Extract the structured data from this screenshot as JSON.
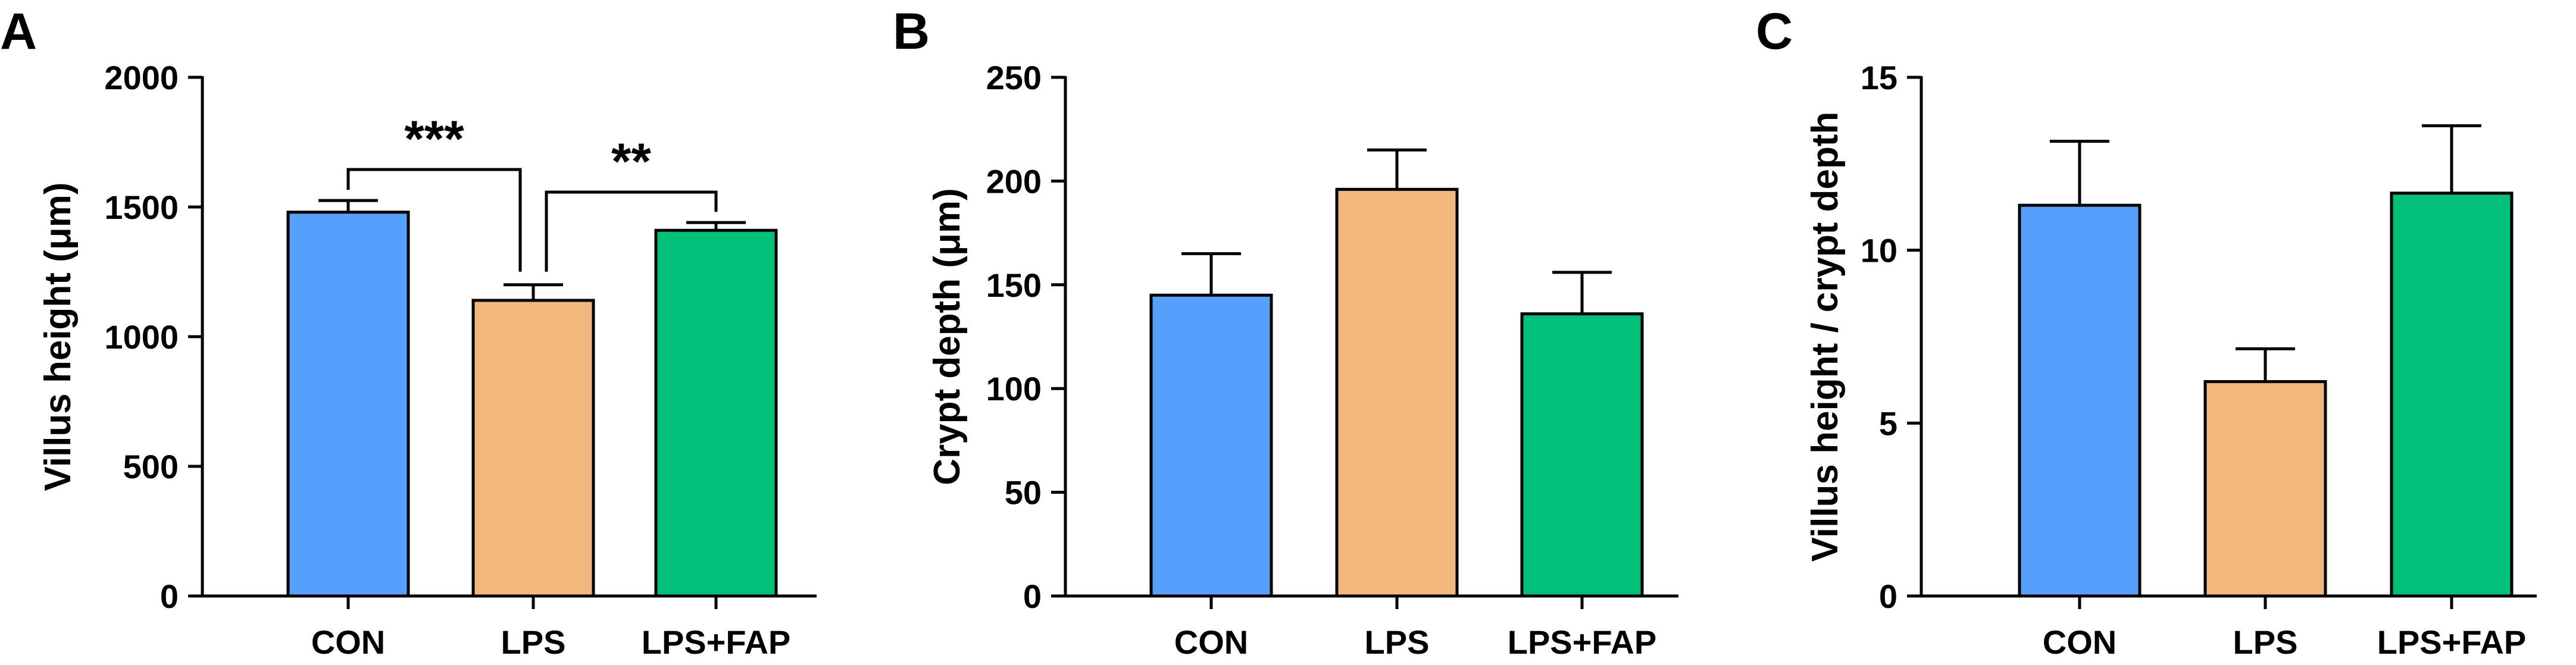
{
  "chart_data": [
    {
      "panel": "A",
      "type": "bar",
      "categories": [
        "CON",
        "LPS",
        "LPS+FAP"
      ],
      "values": [
        1480,
        1140,
        1410
      ],
      "errors": [
        45,
        60,
        30
      ],
      "colors": [
        "#55a0fb",
        "#f2b77d",
        "#00bf78"
      ],
      "ylabel": "Villus height (μm)",
      "xlabel": "",
      "ylim": [
        0,
        2000
      ],
      "yticks": [
        "0",
        "500",
        "1000",
        "1500",
        "2000"
      ],
      "yticks_values": [
        0,
        500,
        1000,
        1500,
        2000
      ],
      "grid": false,
      "significance": [
        {
          "from": 0,
          "to": 1,
          "label": "***"
        },
        {
          "from": 1,
          "to": 2,
          "label": "**"
        }
      ]
    },
    {
      "panel": "B",
      "type": "bar",
      "categories": [
        "CON",
        "LPS",
        "LPS+FAP"
      ],
      "values": [
        145,
        196,
        136
      ],
      "errors": [
        20,
        19,
        20
      ],
      "colors": [
        "#55a0fb",
        "#f2b77d",
        "#00bf78"
      ],
      "ylabel": "Crypt depth (μm)",
      "xlabel": "",
      "ylim": [
        0,
        250
      ],
      "yticks": [
        "0",
        "50",
        "100",
        "150",
        "200",
        "250"
      ],
      "yticks_values": [
        0,
        50,
        100,
        150,
        200,
        250
      ],
      "grid": false,
      "significance": []
    },
    {
      "panel": "C",
      "type": "bar",
      "categories": [
        "CON",
        "LPS",
        "LPS+FAP"
      ],
      "values": [
        11.3,
        6.2,
        11.65
      ],
      "errors": [
        1.85,
        0.95,
        1.95
      ],
      "colors": [
        "#55a0fb",
        "#f2b77d",
        "#00bf78"
      ],
      "ylabel": "Villus height / crypt depth",
      "xlabel": "",
      "ylim": [
        0,
        15
      ],
      "yticks": [
        "0",
        "5",
        "10",
        "15"
      ],
      "yticks_values": [
        0,
        5,
        10,
        15
      ],
      "grid": false,
      "significance": []
    }
  ]
}
